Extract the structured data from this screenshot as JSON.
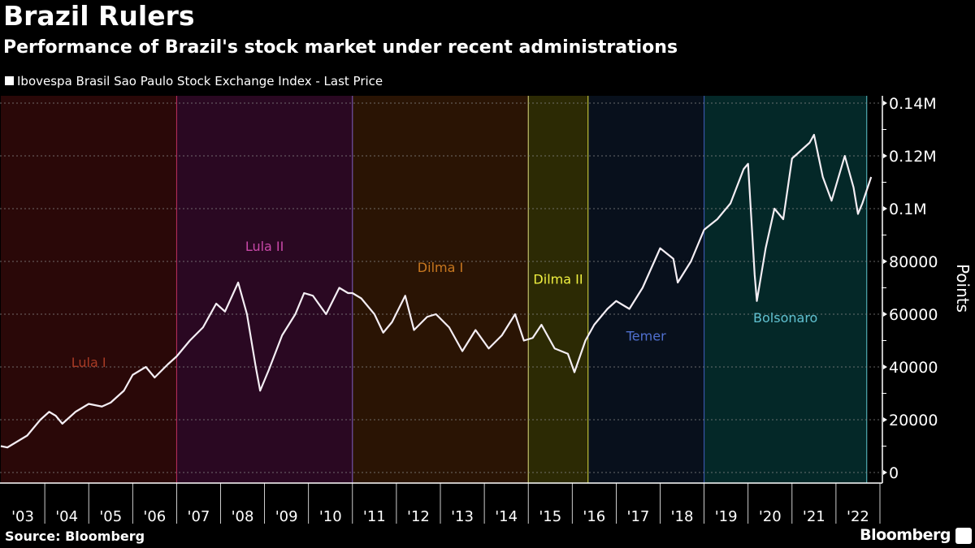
{
  "title": "Brazil Rulers",
  "subtitle": "Performance of Brazil's stock market under recent administrations",
  "legend": "Ibovespa Brasil Sao Paulo Stock Exchange Index - Last Price",
  "source": "Source: Bloomberg",
  "brand": "Bloomberg",
  "chart_data": {
    "type": "line",
    "title": "Brazil Rulers",
    "ylabel": "Points",
    "ylim": [
      0,
      140000
    ],
    "xlim": [
      2003,
      2023
    ],
    "y_ticks": [
      0,
      20000,
      40000,
      60000,
      80000,
      100000,
      120000,
      140000
    ],
    "y_tick_labels": [
      "0",
      "20000",
      "40000",
      "60000",
      "80000",
      "0.1M",
      "0.12M",
      "0.14M"
    ],
    "x_tick_labels": [
      "'03",
      "'04",
      "'05",
      "'06",
      "'07",
      "'08",
      "'09",
      "'10",
      "'11",
      "'12",
      "'13",
      "'14",
      "'15",
      "'16",
      "'17",
      "'18",
      "'19",
      "'20",
      "'21",
      "'22"
    ],
    "regions": [
      {
        "name": "Lula I",
        "start": 2003.0,
        "end": 2007.0,
        "bg": "#2a0808",
        "line": "#c03060",
        "label_color": "#a83a24",
        "label_value": 40000
      },
      {
        "name": "Lula II",
        "start": 2007.0,
        "end": 2011.0,
        "bg": "#2a0822",
        "line": "#8060c0",
        "label_color": "#c848a8",
        "label_value": 84000
      },
      {
        "name": "Dilma I",
        "start": 2011.0,
        "end": 2015.0,
        "bg": "#2a1404",
        "line": "#e0e080",
        "label_color": "#c87820",
        "label_value": 76000
      },
      {
        "name": "Dilma II",
        "start": 2015.0,
        "end": 2016.36,
        "bg": "#2c2a04",
        "line": "#e0e040",
        "label_color": "#f0f040",
        "label_value": 71500
      },
      {
        "name": "Temer",
        "start": 2016.36,
        "end": 2019.0,
        "bg": "#08101c",
        "line": "#4060c0",
        "label_color": "#5070d0",
        "label_value": 50000
      },
      {
        "name": "Bolsonaro",
        "start": 2019.0,
        "end": 2022.7,
        "bg": "#042828",
        "line": "#60c8d0",
        "label_color": "#60c0d0",
        "label_value": 57000
      }
    ],
    "series": [
      {
        "name": "Ibovespa Brasil Sao Paulo Stock Exchange Index - Last Price",
        "color": "#f4eef4",
        "points": [
          [
            2003.0,
            10000
          ],
          [
            2003.15,
            9500
          ],
          [
            2003.3,
            11000
          ],
          [
            2003.6,
            14000
          ],
          [
            2003.9,
            20000
          ],
          [
            2004.1,
            23000
          ],
          [
            2004.25,
            21500
          ],
          [
            2004.4,
            18500
          ],
          [
            2004.7,
            23000
          ],
          [
            2005.0,
            26000
          ],
          [
            2005.3,
            25000
          ],
          [
            2005.5,
            26500
          ],
          [
            2005.8,
            31000
          ],
          [
            2006.0,
            37000
          ],
          [
            2006.3,
            40000
          ],
          [
            2006.5,
            36000
          ],
          [
            2006.8,
            41000
          ],
          [
            2007.0,
            44000
          ],
          [
            2007.3,
            50000
          ],
          [
            2007.6,
            55000
          ],
          [
            2007.9,
            64000
          ],
          [
            2008.1,
            61000
          ],
          [
            2008.4,
            72000
          ],
          [
            2008.6,
            60000
          ],
          [
            2008.8,
            40000
          ],
          [
            2008.9,
            31000
          ],
          [
            2009.1,
            39000
          ],
          [
            2009.4,
            52000
          ],
          [
            2009.7,
            60000
          ],
          [
            2009.9,
            68000
          ],
          [
            2010.1,
            67000
          ],
          [
            2010.4,
            60000
          ],
          [
            2010.7,
            70000
          ],
          [
            2010.9,
            68000
          ],
          [
            2011.0,
            68000
          ],
          [
            2011.2,
            66000
          ],
          [
            2011.5,
            60000
          ],
          [
            2011.7,
            53000
          ],
          [
            2011.9,
            57000
          ],
          [
            2012.2,
            67000
          ],
          [
            2012.4,
            54000
          ],
          [
            2012.7,
            59000
          ],
          [
            2012.9,
            60000
          ],
          [
            2013.2,
            55000
          ],
          [
            2013.5,
            46000
          ],
          [
            2013.8,
            54000
          ],
          [
            2014.1,
            47000
          ],
          [
            2014.4,
            52000
          ],
          [
            2014.7,
            60000
          ],
          [
            2014.9,
            50000
          ],
          [
            2015.1,
            51000
          ],
          [
            2015.3,
            56000
          ],
          [
            2015.6,
            47000
          ],
          [
            2015.9,
            45000
          ],
          [
            2016.05,
            38000
          ],
          [
            2016.3,
            50000
          ],
          [
            2016.5,
            56000
          ],
          [
            2016.8,
            62000
          ],
          [
            2017.0,
            65000
          ],
          [
            2017.3,
            62000
          ],
          [
            2017.6,
            70000
          ],
          [
            2018.0,
            85000
          ],
          [
            2018.3,
            81000
          ],
          [
            2018.4,
            72000
          ],
          [
            2018.7,
            80000
          ],
          [
            2018.9,
            88000
          ],
          [
            2019.0,
            92000
          ],
          [
            2019.3,
            96000
          ],
          [
            2019.6,
            102000
          ],
          [
            2019.9,
            115000
          ],
          [
            2020.0,
            117000
          ],
          [
            2020.15,
            75000
          ],
          [
            2020.2,
            65000
          ],
          [
            2020.4,
            85000
          ],
          [
            2020.6,
            100000
          ],
          [
            2020.8,
            96000
          ],
          [
            2021.0,
            119000
          ],
          [
            2021.4,
            125000
          ],
          [
            2021.5,
            128000
          ],
          [
            2021.7,
            112000
          ],
          [
            2021.9,
            103000
          ],
          [
            2022.2,
            120000
          ],
          [
            2022.4,
            108000
          ],
          [
            2022.5,
            98000
          ],
          [
            2022.6,
            102000
          ],
          [
            2022.8,
            112000
          ]
        ]
      }
    ]
  }
}
